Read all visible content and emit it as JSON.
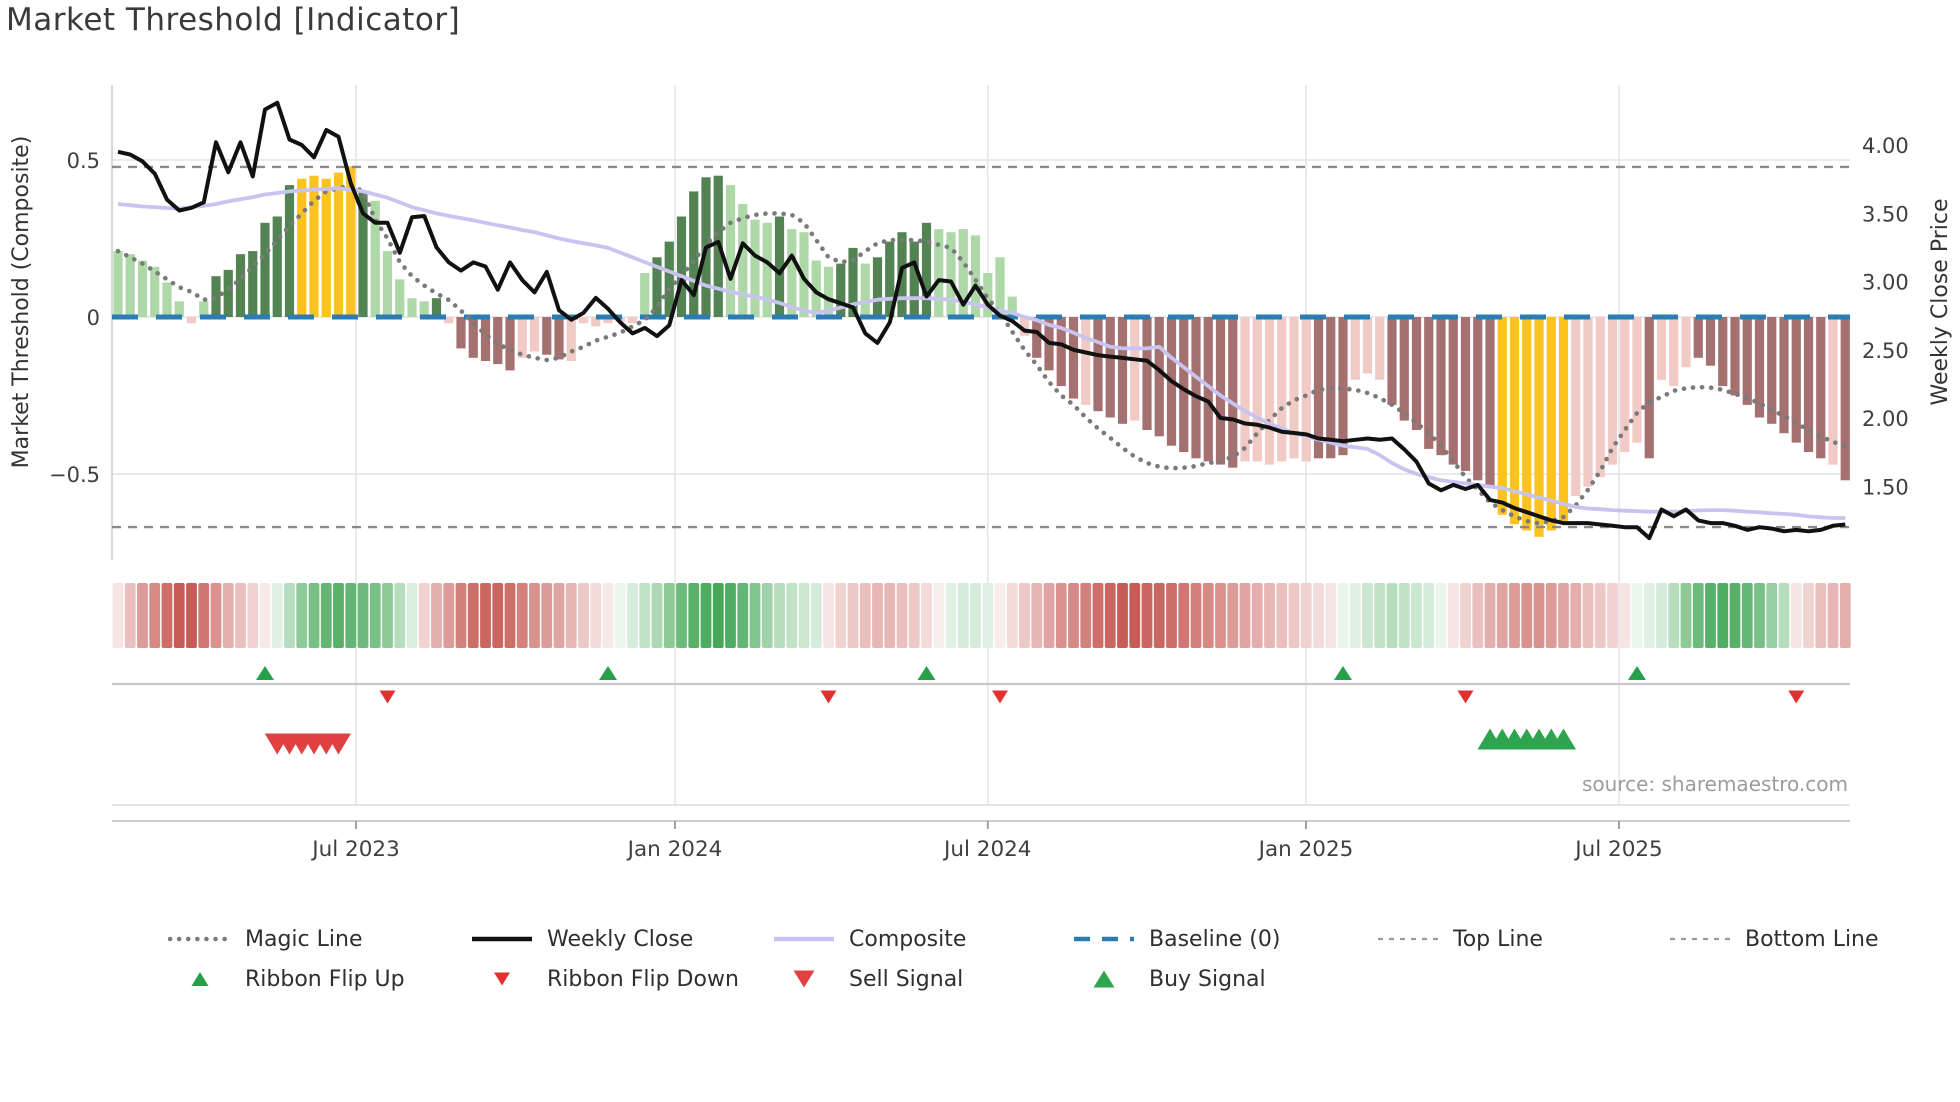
{
  "title": "Market Threshold [Indicator]",
  "source": "source: sharemaestro.com",
  "axes": {
    "left_label": "Market Threshold (Composite)",
    "right_label": "Weekly Close Price",
    "left_ticks": [
      {
        "v": 0.5,
        "label": "0.5"
      },
      {
        "v": 0,
        "label": "0"
      },
      {
        "v": -0.5,
        "label": "−0.5"
      }
    ],
    "right_ticks": [
      {
        "v": 4.0,
        "label": "4.00"
      },
      {
        "v": 3.5,
        "label": "3.50"
      },
      {
        "v": 3.0,
        "label": "3.00"
      },
      {
        "v": 2.5,
        "label": "2.50"
      },
      {
        "v": 2.0,
        "label": "2.00"
      },
      {
        "v": 1.5,
        "label": "1.50"
      }
    ],
    "x_ticks": [
      {
        "pos": 19.43,
        "label": "Jul 2023"
      },
      {
        "pos": 45.47,
        "label": "Jan 2024"
      },
      {
        "pos": 71.0,
        "label": "Jul 2024"
      },
      {
        "pos": 96.98,
        "label": "Jan 2025"
      },
      {
        "pos": 122.53,
        "label": "Jul 2025"
      }
    ]
  },
  "legend": {
    "row1": [
      {
        "label": "Magic Line",
        "type": "magic"
      },
      {
        "label": "Weekly Close",
        "type": "close"
      },
      {
        "label": "Composite",
        "type": "composite"
      },
      {
        "label": "Baseline (0)",
        "type": "baseline"
      },
      {
        "label": "Top Line",
        "type": "topline"
      },
      {
        "label": "Bottom Line",
        "type": "bottomline"
      }
    ],
    "row2": [
      {
        "label": "Ribbon Flip Up",
        "type": "flipup"
      },
      {
        "label": "Ribbon Flip Down",
        "type": "flipdown"
      },
      {
        "label": "Sell Signal",
        "type": "sell"
      },
      {
        "label": "Buy Signal",
        "type": "buy"
      }
    ]
  },
  "colors": {
    "bar_light_green": "#aed8a8",
    "bar_dark_green": "#538253",
    "bar_yellow": "#fcc21d",
    "bar_light_pink": "#f1c9c5",
    "bar_dark_red": "#a57070",
    "weekly_close": "#111111",
    "composite": "#c9c3ef",
    "magic": "#7a7a7a",
    "baseline": "#2b7cb3",
    "ref_dash": "#8a8a8a",
    "grid": "#e4e4e4",
    "spine": "#cccccc",
    "flip_up": "#26a04a",
    "flip_down": "#e03131",
    "sell": "#e04040",
    "buy": "#2da44e",
    "ribbon_green": "#2f9e44",
    "ribbon_red": "#c14a44",
    "axis_text": "#3f3f3f"
  },
  "chart_data": {
    "type": "bar",
    "description": "Weekly market-threshold composite bars with weekly close price overlay, ribbon strip and trade signals",
    "n_weeks": 142,
    "ylim_left": [
      -0.75,
      0.75
    ],
    "ylim_right": [
      1.0,
      4.25
    ],
    "baseline": 0,
    "top_line": 0.478,
    "bottom_line": -0.669,
    "threshold_bars": {
      "values": [
        0.21,
        0.2,
        0.18,
        0.16,
        0.11,
        0.05,
        -0.02,
        0.05,
        0.13,
        0.15,
        0.2,
        0.21,
        0.3,
        0.32,
        0.42,
        0.44,
        0.45,
        0.44,
        0.46,
        0.48,
        0.4,
        0.37,
        0.21,
        0.12,
        0.06,
        0.05,
        0.06,
        -0.02,
        -0.1,
        -0.13,
        -0.14,
        -0.15,
        -0.17,
        -0.13,
        -0.11,
        -0.12,
        -0.135,
        -0.14,
        -0.02,
        -0.03,
        -0.02,
        -0.015,
        -0.02,
        0.14,
        0.19,
        0.24,
        0.32,
        0.4,
        0.445,
        0.45,
        0.42,
        0.36,
        0.31,
        0.3,
        0.32,
        0.28,
        0.27,
        0.18,
        0.16,
        0.17,
        0.22,
        0.17,
        0.19,
        0.24,
        0.27,
        0.24,
        0.3,
        0.28,
        0.27,
        0.28,
        0.26,
        0.14,
        0.19,
        0.065,
        -0.06,
        -0.13,
        -0.17,
        -0.22,
        -0.26,
        -0.28,
        -0.3,
        -0.32,
        -0.34,
        -0.33,
        -0.36,
        -0.38,
        -0.41,
        -0.43,
        -0.45,
        -0.46,
        -0.47,
        -0.48,
        -0.46,
        -0.46,
        -0.47,
        -0.46,
        -0.45,
        -0.46,
        -0.45,
        -0.45,
        -0.44,
        -0.2,
        -0.18,
        -0.2,
        -0.28,
        -0.33,
        -0.36,
        -0.42,
        -0.44,
        -0.47,
        -0.49,
        -0.52,
        -0.54,
        -0.63,
        -0.66,
        -0.68,
        -0.7,
        -0.68,
        -0.66,
        -0.57,
        -0.54,
        -0.51,
        -0.47,
        -0.43,
        -0.4,
        -0.45,
        -0.2,
        -0.22,
        -0.16,
        -0.13,
        -0.155,
        -0.22,
        -0.25,
        -0.28,
        -0.32,
        -0.34,
        -0.37,
        -0.4,
        -0.43,
        -0.45,
        -0.47,
        -0.52
      ],
      "color_codes": [
        "lg",
        "lg",
        "lg",
        "lg",
        "lg",
        "lg",
        "lp",
        "lg",
        "dg",
        "dg",
        "dg",
        "dg",
        "dg",
        "dg",
        "dg",
        "y",
        "y",
        "y",
        "y",
        "y",
        "dg",
        "lg",
        "lg",
        "lg",
        "lg",
        "lg",
        "dg",
        "lp",
        "dr",
        "dr",
        "dr",
        "dr",
        "dr",
        "lp",
        "lp",
        "dr",
        "dr",
        "lp",
        "lp",
        "lp",
        "lp",
        "lp",
        "lp",
        "lg",
        "dg",
        "dg",
        "dg",
        "dg",
        "dg",
        "dg",
        "lg",
        "lg",
        "lg",
        "lg",
        "dg",
        "lg",
        "lg",
        "lg",
        "lg",
        "dg",
        "dg",
        "lg",
        "dg",
        "dg",
        "dg",
        "dg",
        "dg",
        "lg",
        "lg",
        "lg",
        "lg",
        "lg",
        "lg",
        "lg",
        "lp",
        "dr",
        "dr",
        "dr",
        "dr",
        "lp",
        "dr",
        "dr",
        "dr",
        "lp",
        "dr",
        "dr",
        "dr",
        "dr",
        "dr",
        "dr",
        "dr",
        "dr",
        "lp",
        "lp",
        "lp",
        "lp",
        "lp",
        "lp",
        "dr",
        "dr",
        "dr",
        "lp",
        "lp",
        "lp",
        "dr",
        "dr",
        "dr",
        "dr",
        "dr",
        "dr",
        "dr",
        "dr",
        "dr",
        "y",
        "y",
        "y",
        "y",
        "y",
        "y",
        "lp",
        "lp",
        "lp",
        "lp",
        "lp",
        "lp",
        "dr",
        "lp",
        "lp",
        "lp",
        "dr",
        "dr",
        "dr",
        "dr",
        "dr",
        "dr",
        "dr",
        "dr",
        "dr",
        "dr",
        "dr",
        "lp",
        "dr"
      ]
    },
    "weekly_close": [
      3.95,
      3.93,
      3.88,
      3.79,
      3.6,
      3.52,
      3.54,
      3.58,
      4.02,
      3.8,
      4.02,
      3.77,
      4.26,
      4.31,
      4.04,
      4.0,
      3.91,
      4.11,
      4.06,
      3.72,
      3.5,
      3.43,
      3.43,
      3.21,
      3.47,
      3.48,
      3.25,
      3.14,
      3.08,
      3.14,
      3.11,
      2.94,
      3.14,
      3.01,
      2.92,
      3.07,
      2.79,
      2.72,
      2.77,
      2.88,
      2.8,
      2.7,
      2.62,
      2.66,
      2.6,
      2.68,
      3.01,
      2.9,
      3.25,
      3.29,
      3.02,
      3.28,
      3.19,
      3.14,
      3.06,
      3.19,
      3.02,
      2.92,
      2.87,
      2.84,
      2.81,
      2.62,
      2.55,
      2.7,
      3.1,
      3.14,
      2.89,
      3.01,
      3.0,
      2.83,
      2.97,
      2.83,
      2.75,
      2.71,
      2.64,
      2.63,
      2.55,
      2.54,
      2.5,
      2.48,
      2.46,
      2.45,
      2.44,
      2.43,
      2.42,
      2.35,
      2.27,
      2.21,
      2.16,
      2.12,
      2.0,
      1.99,
      1.96,
      1.95,
      1.93,
      1.9,
      1.89,
      1.88,
      1.85,
      1.84,
      1.83,
      1.84,
      1.85,
      1.84,
      1.85,
      1.77,
      1.68,
      1.52,
      1.47,
      1.51,
      1.48,
      1.51,
      1.4,
      1.38,
      1.34,
      1.31,
      1.28,
      1.25,
      1.23,
      1.23,
      1.23,
      1.22,
      1.21,
      1.2,
      1.2,
      1.12,
      1.33,
      1.28,
      1.33,
      1.25,
      1.23,
      1.23,
      1.21,
      1.18,
      1.2,
      1.19,
      1.17,
      1.18,
      1.17,
      1.18,
      1.21,
      1.22
    ],
    "composite": [
      0.36,
      0.356,
      0.352,
      0.35,
      0.347,
      0.345,
      0.35,
      0.354,
      0.36,
      0.368,
      0.375,
      0.382,
      0.39,
      0.395,
      0.4,
      0.403,
      0.405,
      0.408,
      0.41,
      0.405,
      0.4,
      0.39,
      0.38,
      0.365,
      0.35,
      0.34,
      0.33,
      0.322,
      0.315,
      0.308,
      0.3,
      0.292,
      0.285,
      0.277,
      0.27,
      0.26,
      0.25,
      0.242,
      0.235,
      0.228,
      0.22,
      0.205,
      0.19,
      0.175,
      0.16,
      0.145,
      0.13,
      0.115,
      0.1,
      0.09,
      0.08,
      0.072,
      0.065,
      0.055,
      0.045,
      0.032,
      0.02,
      0.013,
      0.02,
      0.03,
      0.04,
      0.048,
      0.055,
      0.058,
      0.06,
      0.06,
      0.06,
      0.058,
      0.055,
      0.048,
      0.04,
      0.03,
      0.02,
      0.013,
      0.0,
      -0.01,
      -0.025,
      -0.035,
      -0.05,
      -0.067,
      -0.08,
      -0.095,
      -0.1,
      -0.1,
      -0.1,
      -0.095,
      -0.13,
      -0.16,
      -0.19,
      -0.22,
      -0.25,
      -0.275,
      -0.3,
      -0.32,
      -0.34,
      -0.355,
      -0.37,
      -0.38,
      -0.39,
      -0.4,
      -0.41,
      -0.415,
      -0.42,
      -0.44,
      -0.465,
      -0.485,
      -0.5,
      -0.51,
      -0.52,
      -0.525,
      -0.53,
      -0.535,
      -0.54,
      -0.545,
      -0.555,
      -0.565,
      -0.575,
      -0.585,
      -0.595,
      -0.605,
      -0.61,
      -0.612,
      -0.615,
      -0.617,
      -0.618,
      -0.62,
      -0.62,
      -0.62,
      -0.618,
      -0.616,
      -0.615,
      -0.615,
      -0.617,
      -0.62,
      -0.622,
      -0.625,
      -0.627,
      -0.63,
      -0.635,
      -0.638,
      -0.64,
      -0.64
    ],
    "magic_line": [
      0.21,
      0.19,
      0.17,
      0.145,
      0.12,
      0.095,
      0.08,
      0.055,
      0.06,
      0.09,
      0.12,
      0.16,
      0.2,
      0.245,
      0.29,
      0.33,
      0.37,
      0.4,
      0.41,
      0.42,
      0.4,
      0.31,
      0.25,
      0.175,
      0.13,
      0.1,
      0.075,
      0.054,
      0.02,
      -0.02,
      -0.055,
      -0.085,
      -0.105,
      -0.12,
      -0.13,
      -0.137,
      -0.13,
      -0.11,
      -0.095,
      -0.075,
      -0.063,
      -0.05,
      -0.03,
      -0.01,
      0.032,
      0.09,
      0.13,
      0.18,
      0.23,
      0.27,
      0.3,
      0.315,
      0.325,
      0.33,
      0.33,
      0.325,
      0.3,
      0.245,
      0.19,
      0.175,
      0.18,
      0.21,
      0.235,
      0.245,
      0.245,
      0.245,
      0.24,
      0.23,
      0.22,
      0.175,
      0.118,
      0.06,
      0.013,
      -0.047,
      -0.105,
      -0.153,
      -0.207,
      -0.25,
      -0.28,
      -0.32,
      -0.355,
      -0.385,
      -0.417,
      -0.445,
      -0.465,
      -0.477,
      -0.482,
      -0.48,
      -0.475,
      -0.465,
      -0.46,
      -0.445,
      -0.417,
      -0.37,
      -0.328,
      -0.29,
      -0.265,
      -0.25,
      -0.232,
      -0.227,
      -0.228,
      -0.232,
      -0.242,
      -0.258,
      -0.28,
      -0.306,
      -0.338,
      -0.37,
      -0.41,
      -0.46,
      -0.51,
      -0.55,
      -0.59,
      -0.615,
      -0.635,
      -0.65,
      -0.657,
      -0.65,
      -0.637,
      -0.6,
      -0.55,
      -0.49,
      -0.417,
      -0.36,
      -0.306,
      -0.27,
      -0.255,
      -0.235,
      -0.227,
      -0.223,
      -0.225,
      -0.232,
      -0.245,
      -0.258,
      -0.275,
      -0.296,
      -0.315,
      -0.338,
      -0.36,
      -0.38,
      -0.398,
      -0.41
    ],
    "ribbon": [
      -0.15,
      -0.35,
      -0.55,
      -0.65,
      -0.8,
      -0.9,
      -0.9,
      -0.75,
      -0.6,
      -0.45,
      -0.35,
      -0.25,
      -0.12,
      0.15,
      0.35,
      0.55,
      0.65,
      0.75,
      0.8,
      0.75,
      0.7,
      0.65,
      0.55,
      0.35,
      0.18,
      -0.25,
      -0.45,
      -0.55,
      -0.7,
      -0.8,
      -0.85,
      -0.85,
      -0.8,
      -0.7,
      -0.6,
      -0.55,
      -0.5,
      -0.4,
      -0.3,
      -0.2,
      -0.12,
      0.1,
      0.2,
      0.3,
      0.4,
      0.55,
      0.7,
      0.8,
      0.85,
      0.9,
      0.85,
      0.75,
      0.6,
      0.45,
      0.35,
      0.3,
      0.25,
      0.2,
      -0.15,
      -0.25,
      -0.3,
      -0.35,
      -0.4,
      -0.4,
      -0.35,
      -0.3,
      -0.2,
      -0.1,
      0.15,
      0.2,
      0.2,
      0.15,
      -0.1,
      -0.2,
      -0.3,
      -0.4,
      -0.5,
      -0.6,
      -0.65,
      -0.7,
      -0.8,
      -0.85,
      -0.9,
      -0.9,
      -0.85,
      -0.85,
      -0.8,
      -0.75,
      -0.7,
      -0.65,
      -0.6,
      -0.55,
      -0.5,
      -0.45,
      -0.4,
      -0.35,
      -0.3,
      -0.25,
      -0.2,
      -0.15,
      0.1,
      0.15,
      0.25,
      0.3,
      0.35,
      0.3,
      0.25,
      0.2,
      0.1,
      -0.15,
      -0.25,
      -0.35,
      -0.45,
      -0.5,
      -0.55,
      -0.6,
      -0.6,
      -0.55,
      -0.5,
      -0.45,
      -0.35,
      -0.3,
      -0.25,
      -0.15,
      0.1,
      0.15,
      0.2,
      0.35,
      0.55,
      0.7,
      0.8,
      0.85,
      0.8,
      0.75,
      0.65,
      0.5,
      0.35,
      -0.15,
      -0.25,
      -0.35,
      -0.4,
      -0.45
    ],
    "signals": {
      "ribbon_flip_up": [
        12,
        40,
        66,
        100,
        124
      ],
      "ribbon_flip_down": [
        22,
        58,
        72,
        110,
        137
      ],
      "sell": [
        13,
        14,
        15,
        16,
        17,
        18
      ],
      "buy": [
        112,
        113,
        114,
        115,
        116,
        117,
        118
      ]
    }
  }
}
